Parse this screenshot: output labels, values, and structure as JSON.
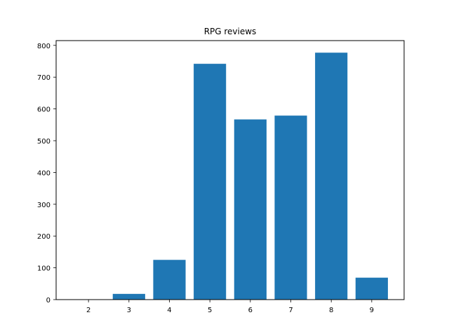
{
  "chart_data": {
    "type": "bar",
    "title": "RPG reviews",
    "xlabel": "",
    "ylabel": "",
    "categories": [
      "2",
      "3",
      "4",
      "5",
      "6",
      "7",
      "8",
      "9"
    ],
    "values": [
      1,
      18,
      125,
      742,
      567,
      579,
      777,
      69
    ],
    "ylim": [
      0,
      815
    ],
    "yticks": [
      "0",
      "100",
      "200",
      "300",
      "400",
      "500",
      "600",
      "700",
      "800"
    ],
    "grid": false,
    "bar_color": "#1f77b4"
  }
}
